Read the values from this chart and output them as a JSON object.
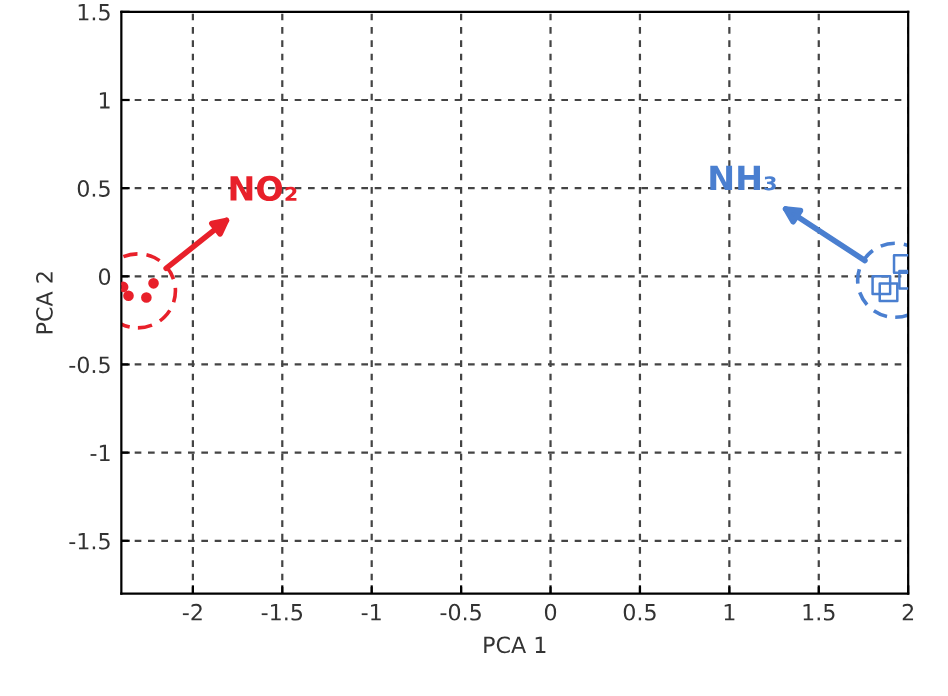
{
  "chart_data": {
    "type": "scatter",
    "xlabel": "PCA 1",
    "ylabel": "PCA 2",
    "xlim": [
      -2.4,
      2
    ],
    "ylim": [
      -1.8,
      1.5
    ],
    "xticks": [
      -2,
      -1.5,
      -1,
      -0.5,
      0,
      0.5,
      1,
      1.5,
      2
    ],
    "yticks": [
      -1.5,
      -1,
      -0.5,
      0,
      0.5,
      1,
      1.5
    ],
    "grid": true,
    "legend": false,
    "series": [
      {
        "name": "NO₂",
        "color": "#e8202a",
        "marker": "circle",
        "x": [
          -2.39,
          -2.36,
          -2.26,
          -2.22
        ],
        "values": [
          -0.06,
          -0.11,
          -0.12,
          -0.04
        ]
      },
      {
        "name": "NH₃",
        "color": "#4a7fd0",
        "marker": "square",
        "x": [
          1.97,
          2.0,
          1.85,
          1.89
        ],
        "values": [
          0.07,
          -0.02,
          -0.05,
          -0.09
        ]
      }
    ]
  }
}
